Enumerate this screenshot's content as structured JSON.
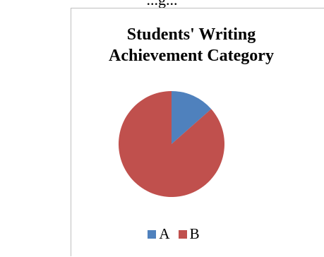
{
  "header_fragment": "...g...",
  "chart_data": {
    "type": "pie",
    "title_lines": [
      "Students' Writing",
      "Achievement Category"
    ],
    "categories": [
      "A",
      "B"
    ],
    "values": [
      13.5,
      86.5
    ],
    "colors": [
      "#4f81bd",
      "#c0504d"
    ],
    "legend_position": "bottom"
  }
}
